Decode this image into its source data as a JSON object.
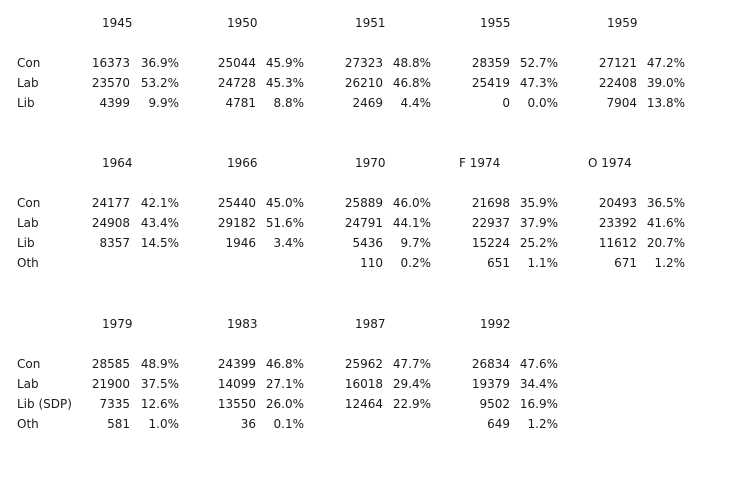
{
  "blocks": [
    {
      "elections": [
        {
          "year": "1945",
          "rows": [
            {
              "votes": "16373",
              "pct": "36.9%"
            },
            {
              "votes": "23570",
              "pct": "53.2%"
            },
            {
              "votes": "4399",
              "pct": "9.9%"
            }
          ]
        },
        {
          "year": "1950",
          "rows": [
            {
              "votes": "25044",
              "pct": "45.9%"
            },
            {
              "votes": "24728",
              "pct": "45.3%"
            },
            {
              "votes": "4781",
              "pct": "8.8%"
            }
          ]
        },
        {
          "year": "1951",
          "rows": [
            {
              "votes": "27323",
              "pct": "48.8%"
            },
            {
              "votes": "26210",
              "pct": "46.8%"
            },
            {
              "votes": "2469",
              "pct": "4.4%"
            }
          ]
        },
        {
          "year": "1955",
          "rows": [
            {
              "votes": "28359",
              "pct": "52.7%"
            },
            {
              "votes": "25419",
              "pct": "47.3%"
            },
            {
              "votes": "0",
              "pct": "0.0%"
            }
          ]
        },
        {
          "year": "1959",
          "rows": [
            {
              "votes": "27121",
              "pct": "47.2%"
            },
            {
              "votes": "22408",
              "pct": "39.0%"
            },
            {
              "votes": "7904",
              "pct": "13.8%"
            }
          ]
        }
      ],
      "parties": [
        "Con",
        "Lab",
        "Lib"
      ]
    },
    {
      "elections": [
        {
          "year": "1964",
          "rows": [
            {
              "votes": "24177",
              "pct": "42.1%"
            },
            {
              "votes": "24908",
              "pct": "43.4%"
            },
            {
              "votes": "8357",
              "pct": "14.5%"
            }
          ]
        },
        {
          "year": "1966",
          "rows": [
            {
              "votes": "25440",
              "pct": "45.0%"
            },
            {
              "votes": "29182",
              "pct": "51.6%"
            },
            {
              "votes": "1946",
              "pct": "3.4%"
            }
          ]
        },
        {
          "year": "1970",
          "rows": [
            {
              "votes": "25889",
              "pct": "46.0%"
            },
            {
              "votes": "24791",
              "pct": "44.1%"
            },
            {
              "votes": "5436",
              "pct": "9.7%"
            },
            {
              "votes": "110",
              "pct": "0.2%"
            }
          ]
        },
        {
          "year": "F 1974",
          "rows": [
            {
              "votes": "21698",
              "pct": "35.9%"
            },
            {
              "votes": "22937",
              "pct": "37.9%"
            },
            {
              "votes": "15224",
              "pct": "25.2%"
            },
            {
              "votes": "651",
              "pct": "1.1%"
            }
          ]
        },
        {
          "year": "O 1974",
          "rows": [
            {
              "votes": "20493",
              "pct": "36.5%"
            },
            {
              "votes": "23392",
              "pct": "41.6%"
            },
            {
              "votes": "11612",
              "pct": "20.7%"
            },
            {
              "votes": "671",
              "pct": "1.2%"
            }
          ]
        }
      ],
      "parties": [
        "Con",
        "Lab",
        "Lib",
        "Oth"
      ]
    },
    {
      "elections": [
        {
          "year": "1979",
          "rows": [
            {
              "votes": "28585",
              "pct": "48.9%"
            },
            {
              "votes": "21900",
              "pct": "37.5%"
            },
            {
              "votes": "7335",
              "pct": "12.6%"
            },
            {
              "votes": "581",
              "pct": "1.0%"
            }
          ]
        },
        {
          "year": "1983",
          "rows": [
            {
              "votes": "24399",
              "pct": "46.8%"
            },
            {
              "votes": "14099",
              "pct": "27.1%"
            },
            {
              "votes": "13550",
              "pct": "26.0%"
            },
            {
              "votes": "36",
              "pct": "0.1%"
            }
          ]
        },
        {
          "year": "1987",
          "rows": [
            {
              "votes": "25962",
              "pct": "47.7%"
            },
            {
              "votes": "16018",
              "pct": "29.4%"
            },
            {
              "votes": "12464",
              "pct": "22.9%"
            }
          ]
        },
        {
          "year": "1992",
          "rows": [
            {
              "votes": "26834",
              "pct": "47.6%"
            },
            {
              "votes": "19379",
              "pct": "34.4%"
            },
            {
              "votes": "9502",
              "pct": "16.9%"
            },
            {
              "votes": "649",
              "pct": "1.2%"
            }
          ]
        }
      ],
      "parties": [
        "Con",
        "Lab",
        "Lib (SDP)",
        "Oth"
      ]
    }
  ]
}
